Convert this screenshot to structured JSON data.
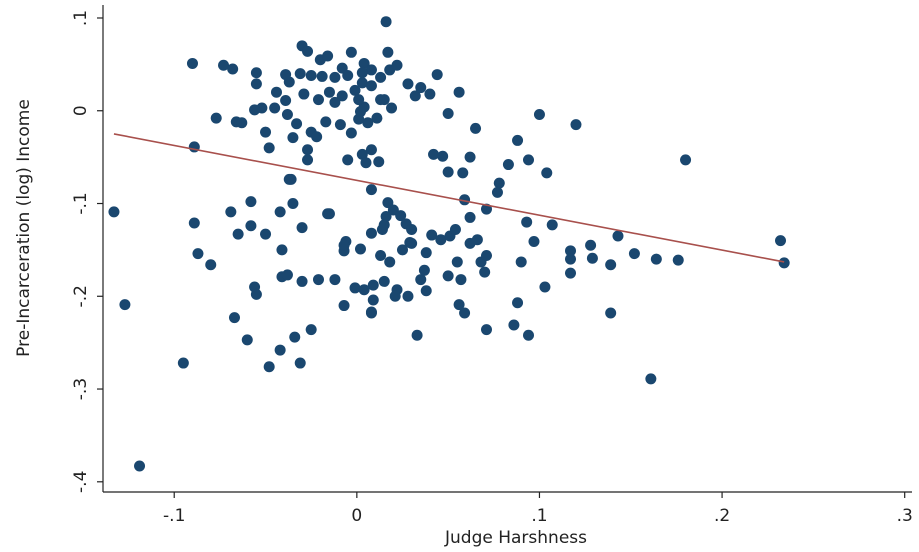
{
  "chart_data": {
    "type": "scatter",
    "x_label": "Judge Harshness",
    "y_label": "Pre-Incarceration (log) Income",
    "marker_color": "#1a476f",
    "xlim": [
      -0.139,
      0.304
    ],
    "ylim": [
      -0.411,
      0.114
    ],
    "xticks": [
      {
        "value": -0.1,
        "label": "-.1"
      },
      0,
      {
        "value": 0.1,
        "label": ".1"
      },
      {
        "value": 0.2,
        "label": ".2"
      },
      {
        "value": 0.3,
        "label": ".3"
      }
    ],
    "yticks": [
      {
        "value": 0.1,
        "label": ".1"
      },
      0,
      {
        "value": -0.1,
        "label": "-.1"
      },
      {
        "value": -0.2,
        "label": "-.2"
      },
      {
        "value": -0.3,
        "label": "-.3"
      },
      {
        "value": -0.4,
        "label": "-.4"
      }
    ],
    "x": [
      0.016,
      -0.09,
      -0.073,
      -0.068,
      -0.055,
      -0.055,
      -0.03,
      -0.027,
      -0.02,
      -0.016,
      -0.003,
      0.004,
      0.008,
      0.003,
      -0.008,
      -0.005,
      -0.012,
      -0.019,
      -0.025,
      -0.031,
      -0.037,
      -0.039,
      -0.044,
      -0.039,
      -0.045,
      -0.052,
      -0.056,
      -0.066,
      -0.077,
      -0.063,
      -0.05,
      -0.048,
      -0.029,
      -0.021,
      -0.015,
      -0.008,
      -0.001,
      0.003,
      0.008,
      0.013,
      0.018,
      0.022,
      0.017,
      0.028,
      0.032,
      0.035,
      0.04,
      0.044,
      0.056,
      0.05,
      0.015,
      0.019,
      0.011,
      0.006,
      0.001,
      -0.009,
      -0.017,
      -0.025,
      -0.033,
      -0.035,
      -0.022,
      -0.027,
      -0.027,
      -0.003,
      0.003,
      0.008,
      0.005,
      0.012,
      -0.089,
      -0.036,
      -0.015,
      0.008,
      0.017,
      0.02,
      0.024,
      0.027,
      0.03,
      0.029,
      0.025,
      0.018,
      0.013,
      0.008,
      -0.006,
      0.002,
      -0.007,
      -0.001,
      0.004,
      0.009,
      0.009,
      0.008,
      0.014,
      0.015,
      0.022,
      0.028,
      0.035,
      0.037,
      0.038,
      0.038,
      0.033,
      0.03,
      0.041,
      0.046,
      0.051,
      0.05,
      0.054,
      0.055,
      0.057,
      0.056,
      0.059,
      0.059,
      0.062,
      0.062,
      0.066,
      0.068,
      0.071,
      0.07,
      0.071,
      0.058,
      0.05,
      0.042,
      0.065,
      0.062,
      0.078,
      0.071,
      0.077,
      0.083,
      0.088,
      0.094,
      0.093,
      0.1,
      0.104,
      0.107,
      0.097,
      0.09,
      0.086,
      0.088,
      0.094,
      0.103,
      0.117,
      0.117,
      0.117,
      0.12,
      0.128,
      0.129,
      0.139,
      0.143,
      0.139,
      0.152,
      0.164,
      0.176,
      0.18,
      0.161,
      0.232,
      0.234,
      -0.133,
      -0.127,
      -0.119,
      -0.095,
      -0.089,
      -0.087,
      -0.08,
      -0.069,
      -0.067,
      -0.06,
      -0.065,
      -0.058,
      -0.058,
      -0.056,
      -0.055,
      -0.05,
      -0.048,
      -0.042,
      -0.042,
      -0.041,
      -0.041,
      -0.038,
      -0.037,
      -0.035,
      -0.034,
      -0.031,
      -0.03,
      -0.03,
      -0.025,
      -0.021,
      -0.016,
      -0.012,
      -0.007,
      -0.007,
      0.008,
      0.021,
      -0.005,
      0.002,
      0.004,
      0.013,
      0.001,
      -0.012,
      -0.038,
      0.015,
      0.047,
      0.016
    ],
    "values": [
      0.096,
      0.051,
      0.049,
      0.045,
      0.041,
      0.029,
      0.07,
      0.064,
      0.055,
      0.059,
      0.063,
      0.051,
      0.044,
      0.041,
      0.046,
      0.038,
      0.036,
      0.037,
      0.038,
      0.04,
      0.031,
      0.039,
      0.02,
      0.011,
      0.003,
      0.003,
      0.001,
      -0.012,
      -0.008,
      -0.013,
      -0.023,
      -0.04,
      0.018,
      0.012,
      0.02,
      0.016,
      0.022,
      0.03,
      0.027,
      0.036,
      0.044,
      0.049,
      0.063,
      0.029,
      0.016,
      0.025,
      0.018,
      0.039,
      0.02,
      -0.003,
      0.012,
      0.003,
      -0.008,
      -0.013,
      -0.009,
      -0.015,
      -0.012,
      -0.023,
      -0.014,
      -0.029,
      -0.028,
      -0.042,
      -0.053,
      -0.024,
      -0.047,
      -0.042,
      -0.056,
      -0.055,
      -0.039,
      -0.074,
      -0.111,
      -0.085,
      -0.099,
      -0.107,
      -0.113,
      -0.122,
      -0.128,
      -0.142,
      -0.15,
      -0.163,
      -0.156,
      -0.132,
      -0.141,
      -0.149,
      -0.151,
      -0.191,
      -0.193,
      -0.188,
      -0.204,
      -0.218,
      -0.128,
      -0.184,
      -0.193,
      -0.2,
      -0.182,
      -0.172,
      -0.153,
      -0.194,
      -0.242,
      -0.143,
      -0.134,
      -0.139,
      -0.135,
      -0.178,
      -0.128,
      -0.163,
      -0.182,
      -0.209,
      -0.218,
      -0.096,
      -0.115,
      -0.143,
      -0.139,
      -0.163,
      -0.156,
      -0.174,
      -0.236,
      -0.067,
      -0.066,
      -0.047,
      -0.019,
      -0.05,
      -0.078,
      -0.106,
      -0.088,
      -0.058,
      -0.032,
      -0.053,
      -0.12,
      -0.004,
      -0.067,
      -0.123,
      -0.141,
      -0.163,
      -0.231,
      -0.207,
      -0.242,
      -0.19,
      -0.151,
      -0.16,
      -0.175,
      -0.015,
      -0.145,
      -0.159,
      -0.166,
      -0.135,
      -0.218,
      -0.154,
      -0.16,
      -0.161,
      -0.053,
      -0.289,
      -0.14,
      -0.164,
      -0.109,
      -0.209,
      -0.383,
      -0.272,
      -0.121,
      -0.154,
      -0.166,
      -0.109,
      -0.223,
      -0.247,
      -0.133,
      -0.098,
      -0.124,
      -0.19,
      -0.198,
      -0.133,
      -0.276,
      -0.109,
      -0.258,
      -0.15,
      -0.179,
      -0.177,
      -0.074,
      -0.1,
      -0.244,
      -0.272,
      -0.126,
      -0.184,
      -0.236,
      -0.182,
      -0.111,
      -0.182,
      -0.21,
      -0.145,
      -0.217,
      -0.2,
      -0.053,
      -0.001,
      0.004,
      0.012,
      0.012,
      0.009,
      -0.004,
      -0.123,
      -0.049,
      -0.114
    ],
    "fit": {
      "color": "#a8504c",
      "x": [
        -0.133,
        0.234
      ],
      "values": [
        -0.025,
        -0.163
      ]
    }
  }
}
